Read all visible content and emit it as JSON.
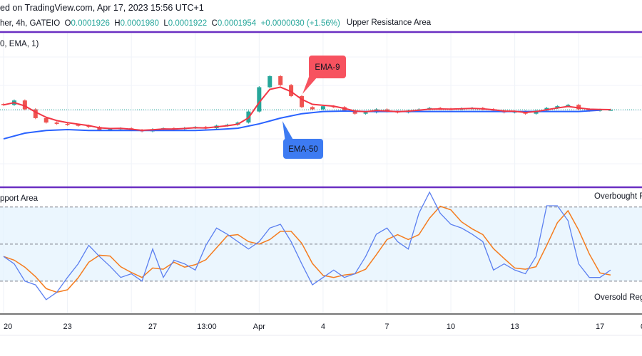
{
  "header": {
    "text": "ed on TradingView.com, Apr 17, 2023 15:56 UTC+1"
  },
  "legend": {
    "symbol": "her, 4h, GATEIO",
    "open_label": "O",
    "open": "0.0001926",
    "high_label": "H",
    "high": "0.0001980",
    "low_label": "L",
    "low": "0.0001922",
    "close_label": "C",
    "close": "0.0001954",
    "change": "+0.0000030 (+1.56%)"
  },
  "indicator_label": "0, EMA, 1)",
  "annotations": {
    "upper_resistance": "Upper Resistance Area",
    "support": "pport Area",
    "overbought": "Overbought R",
    "oversold": "Oversold Reg",
    "ema9": "EMA-9",
    "ema50": "EMA-50"
  },
  "colors": {
    "up": "#26a69a",
    "down": "#ef5350",
    "ema9": "#f23645",
    "ema50": "#2962ff",
    "ema9_box": "#f7525f",
    "ema50_box": "#3d7bf2",
    "zone_line": "#6a2fc2",
    "osc_fast": "#5b7ff0",
    "osc_slow": "#f57c1f",
    "band": "#e3f2fd"
  },
  "chart_data": [
    {
      "type": "candlestick",
      "timeframe": "12h samples",
      "start": "2023-03-20",
      "ylim": [
        0.000178,
        0.000213
      ],
      "closes": [
        0.0001965,
        0.0001975,
        0.0001955,
        0.0001935,
        0.0001925,
        0.0001922,
        0.000192,
        0.0001918,
        0.0001915,
        0.0001908,
        0.000191,
        0.0001912,
        0.0001908,
        0.0001905,
        0.000191,
        0.0001912,
        0.000191,
        0.0001913,
        0.0001915,
        0.0001912,
        0.0001918,
        0.000192,
        0.0001925,
        0.000195,
        0.0002005,
        0.000203,
        0.000201,
        0.0001985,
        0.000196,
        0.0001955,
        0.0001962,
        0.000196,
        0.0001952,
        0.0001945,
        0.0001948,
        0.0001955,
        0.000195,
        0.0001948,
        0.0001952,
        0.0001955,
        0.0001958,
        0.0001956,
        0.0001955,
        0.0001957,
        0.0001958,
        0.0001955,
        0.0001952,
        0.0001948,
        0.000195,
        0.0001945,
        0.0001952,
        0.0001958,
        0.0001962,
        0.0001965,
        0.0001955,
        0.0001952,
        0.0001954,
        0.0001954
      ],
      "series": [
        {
          "name": "EMA-9",
          "derived_from": "closes"
        },
        {
          "name": "EMA-50",
          "daily_values": [
            0.0001888,
            0.0001901,
            0.0001907,
            0.0001909,
            0.0001907,
            0.0001907,
            0.0001907,
            0.0001907,
            0.0001907,
            0.0001907,
            0.0001909,
            0.0001912,
            0.0001922,
            0.0001935,
            0.0001945,
            0.000195,
            0.0001951,
            0.000195,
            0.000195,
            0.000195,
            0.000195,
            0.000195,
            0.000195,
            0.000195,
            0.000195,
            0.000195,
            0.000195,
            0.000195,
            0.0001953
          ]
        }
      ],
      "x_ticks": [
        {
          "label": "20",
          "day": 0
        },
        {
          "label": "23",
          "day": 3
        },
        {
          "label": "27",
          "day": 7
        },
        {
          "label": "13:00",
          "day": 9.54
        },
        {
          "label": "Apr",
          "day": 12
        },
        {
          "label": "4",
          "day": 15
        },
        {
          "label": "7",
          "day": 18
        },
        {
          "label": "10",
          "day": 21
        },
        {
          "label": "13",
          "day": 24
        },
        {
          "label": "17",
          "day": 28
        }
      ]
    },
    {
      "type": "line",
      "pane": "oscillator",
      "ylim": [
        -6,
        96
      ],
      "levels": {
        "overbought": 80,
        "middle": 50,
        "oversold": 20
      },
      "series": [
        {
          "values": [
            40,
            34,
            20,
            17,
            5,
            11,
            23,
            34,
            49,
            40,
            32,
            23,
            26,
            20,
            46,
            23,
            37,
            34,
            29,
            49,
            63,
            58,
            52,
            46,
            52,
            63,
            66,
            52,
            34,
            17,
            23,
            29,
            23,
            26,
            40,
            58,
            63,
            52,
            46,
            75,
            92,
            75,
            66,
            63,
            58,
            52,
            29,
            34,
            29,
            26,
            40,
            81,
            81,
            69,
            34,
            23,
            23,
            29
          ]
        },
        {
          "derived_from": "3-period average of first series"
        }
      ]
    }
  ]
}
